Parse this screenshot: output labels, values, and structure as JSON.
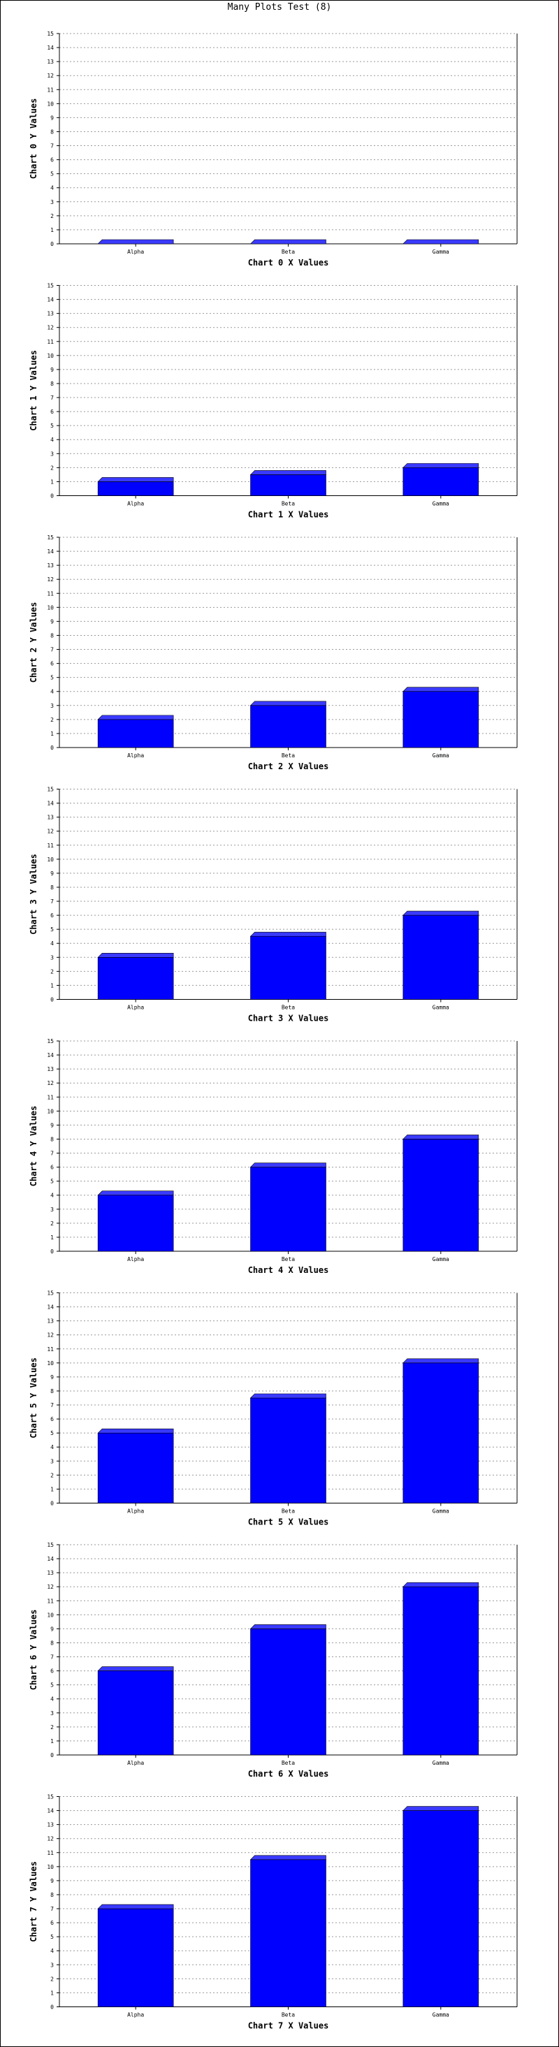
{
  "title": "Many Plots Test (8)",
  "colors": {
    "bar_front": "#0000ff",
    "bar_side": "#000080",
    "bar_top": "#3a3aff",
    "grid": "#999999",
    "axis": "#000000",
    "background": "#ffffff"
  },
  "chart_data": [
    {
      "type": "bar",
      "categories": [
        "Alpha",
        "Beta",
        "Gamma"
      ],
      "values": [
        0,
        0,
        0
      ],
      "xlabel": "Chart 0 X Values",
      "ylabel": "Chart 0 Y Values",
      "ylim": [
        0,
        15
      ],
      "yticks": [
        "0",
        "1",
        "2",
        "3",
        "4",
        "5",
        "6",
        "7",
        "8",
        "9",
        "10",
        "11",
        "12",
        "13",
        "14",
        "15"
      ],
      "grid": true,
      "style": "3d-bar"
    },
    {
      "type": "bar",
      "categories": [
        "Alpha",
        "Beta",
        "Gamma"
      ],
      "values": [
        1,
        1.5,
        2
      ],
      "xlabel": "Chart 1 X Values",
      "ylabel": "Chart 1 Y Values",
      "ylim": [
        0,
        15
      ],
      "yticks": [
        "0",
        "1",
        "2",
        "3",
        "4",
        "5",
        "6",
        "7",
        "8",
        "9",
        "10",
        "11",
        "12",
        "13",
        "14",
        "15"
      ],
      "grid": true,
      "style": "3d-bar"
    },
    {
      "type": "bar",
      "categories": [
        "Alpha",
        "Beta",
        "Gamma"
      ],
      "values": [
        2,
        3,
        4
      ],
      "xlabel": "Chart 2 X Values",
      "ylabel": "Chart 2 Y Values",
      "ylim": [
        0,
        15
      ],
      "yticks": [
        "0",
        "1",
        "2",
        "3",
        "4",
        "5",
        "6",
        "7",
        "8",
        "9",
        "10",
        "11",
        "12",
        "13",
        "14",
        "15"
      ],
      "grid": true,
      "style": "3d-bar"
    },
    {
      "type": "bar",
      "categories": [
        "Alpha",
        "Beta",
        "Gamma"
      ],
      "values": [
        3,
        4.5,
        6
      ],
      "xlabel": "Chart 3 X Values",
      "ylabel": "Chart 3 Y Values",
      "ylim": [
        0,
        15
      ],
      "yticks": [
        "0",
        "1",
        "2",
        "3",
        "4",
        "5",
        "6",
        "7",
        "8",
        "9",
        "10",
        "11",
        "12",
        "13",
        "14",
        "15"
      ],
      "grid": true,
      "style": "3d-bar"
    },
    {
      "type": "bar",
      "categories": [
        "Alpha",
        "Beta",
        "Gamma"
      ],
      "values": [
        4,
        6,
        8
      ],
      "xlabel": "Chart 4 X Values",
      "ylabel": "Chart 4 Y Values",
      "ylim": [
        0,
        15
      ],
      "yticks": [
        "0",
        "1",
        "2",
        "3",
        "4",
        "5",
        "6",
        "7",
        "8",
        "9",
        "10",
        "11",
        "12",
        "13",
        "14",
        "15"
      ],
      "grid": true,
      "style": "3d-bar"
    },
    {
      "type": "bar",
      "categories": [
        "Alpha",
        "Beta",
        "Gamma"
      ],
      "values": [
        5,
        7.5,
        10
      ],
      "xlabel": "Chart 5 X Values",
      "ylabel": "Chart 5 Y Values",
      "ylim": [
        0,
        15
      ],
      "yticks": [
        "0",
        "1",
        "2",
        "3",
        "4",
        "5",
        "6",
        "7",
        "8",
        "9",
        "10",
        "11",
        "12",
        "13",
        "14",
        "15"
      ],
      "grid": true,
      "style": "3d-bar"
    },
    {
      "type": "bar",
      "categories": [
        "Alpha",
        "Beta",
        "Gamma"
      ],
      "values": [
        6,
        9,
        12
      ],
      "xlabel": "Chart 6 X Values",
      "ylabel": "Chart 6 Y Values",
      "ylim": [
        0,
        15
      ],
      "yticks": [
        "0",
        "1",
        "2",
        "3",
        "4",
        "5",
        "6",
        "7",
        "8",
        "9",
        "10",
        "11",
        "12",
        "13",
        "14",
        "15"
      ],
      "grid": true,
      "style": "3d-bar"
    },
    {
      "type": "bar",
      "categories": [
        "Alpha",
        "Beta",
        "Gamma"
      ],
      "values": [
        7,
        10.5,
        14
      ],
      "xlabel": "Chart 7 X Values",
      "ylabel": "Chart 7 Y Values",
      "ylim": [
        0,
        15
      ],
      "yticks": [
        "0",
        "1",
        "2",
        "3",
        "4",
        "5",
        "6",
        "7",
        "8",
        "9",
        "10",
        "11",
        "12",
        "13",
        "14",
        "15"
      ],
      "grid": true,
      "style": "3d-bar"
    }
  ]
}
